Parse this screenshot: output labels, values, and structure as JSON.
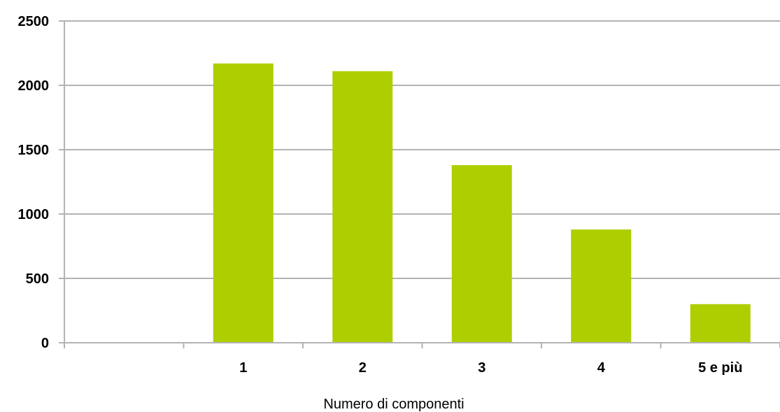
{
  "chart_data": {
    "type": "bar",
    "categories": [
      "",
      "1",
      "2",
      "3",
      "4",
      "5 e più"
    ],
    "values": [
      null,
      2170,
      2110,
      1380,
      880,
      300
    ],
    "title": "",
    "xlabel": "Numero di componenti",
    "ylabel": "",
    "ylim": [
      0,
      2500
    ],
    "yticks": [
      0,
      500,
      1000,
      1500,
      2000,
      2500
    ],
    "grid": true,
    "legend": "none",
    "bar_color": "#afce00"
  }
}
